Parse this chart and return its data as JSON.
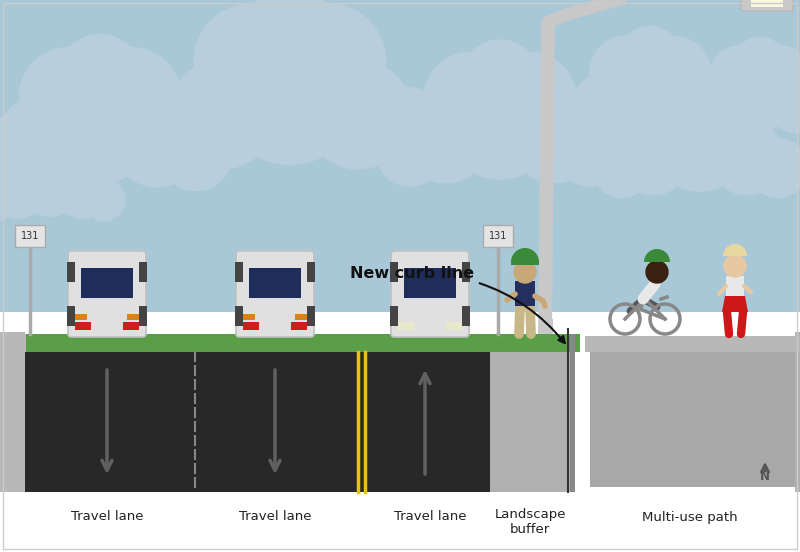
{
  "sky_color": "#a8c8d8",
  "cloud_color": "#b8cedd",
  "road_color": "#282828",
  "road_color2": "#333333",
  "yellow_line": "#e8c020",
  "grass_color": "#5a9e48",
  "sidewalk_color": "#b8b8b8",
  "landscape_buf_color": "#b0b0b0",
  "path_color": "#a8a8a8",
  "curb_color": "#999999",
  "white": "#ffffff",
  "car_body": "#e0e0e0",
  "car_window": "#1e2d5a",
  "car_light_red": "#cc2020",
  "car_light_orange": "#e08010",
  "car_light_white": "#e8e8cc",
  "wheel_color": "#444444",
  "arrow_gray": "#606060",
  "pole_color": "#c8c8c8",
  "pole_color2": "#d0d0d0",
  "sign_bg": "#e4e4e4",
  "sign_border": "#aaaaaa",
  "bus_text": "131",
  "new_curb_text": "New curb line",
  "label_travel": "Travel lane",
  "label_landscape": "Landscape\nbuffer",
  "label_multiuse": "Multi-use path",
  "north_color": "#555555",
  "text_color": "#222222",
  "skin_tan": "#c8a878",
  "skin_dark": "#3a2010",
  "skin_light": "#e8c8a0",
  "shirt_blue": "#253060",
  "shirt_white": "#e8e8e8",
  "pants_tan": "#c8b888",
  "hat_green": "#3a8a3a",
  "skirt_red": "#cc1818",
  "hair_light": "#e8d8a0"
}
